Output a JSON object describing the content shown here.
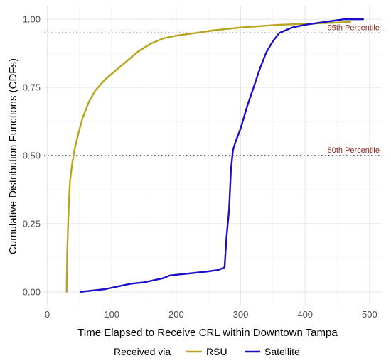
{
  "chart_data": {
    "type": "line",
    "xlabel": "Time Elapsed to Receive CRL within Downtown Tampa",
    "ylabel": "Cumulative Distribution Functions (CDFs)",
    "xlim": [
      -5,
      520
    ],
    "ylim": [
      -0.05,
      1.05
    ],
    "x_ticks": [
      0,
      100,
      200,
      300,
      400,
      500
    ],
    "x_tick_labels": [
      "0",
      "100",
      "200",
      "300",
      "400",
      "500"
    ],
    "y_ticks": [
      0.0,
      0.25,
      0.5,
      0.75,
      1.0
    ],
    "y_tick_labels": [
      "0.00",
      "0.25",
      "0.50",
      "0.75",
      "1.00"
    ],
    "grid": true,
    "legend_position": "bottom",
    "legend_title": "Received via",
    "reference_lines": [
      {
        "y": 0.95,
        "label": "95th Percentile"
      },
      {
        "y": 0.5,
        "label": "50th Percentile"
      }
    ],
    "series": [
      {
        "name": "RSU",
        "color": "#b8a41b",
        "x": [
          30,
          31,
          33,
          35,
          38,
          42,
          48,
          55,
          65,
          75,
          90,
          100,
          115,
          125,
          140,
          160,
          180,
          200,
          230,
          260,
          300,
          360,
          420,
          470
        ],
        "y": [
          0.0,
          0.15,
          0.3,
          0.4,
          0.46,
          0.52,
          0.58,
          0.64,
          0.7,
          0.74,
          0.78,
          0.8,
          0.83,
          0.85,
          0.88,
          0.91,
          0.93,
          0.94,
          0.95,
          0.96,
          0.97,
          0.98,
          0.985,
          0.99
        ]
      },
      {
        "name": "Satellite",
        "color": "#1a0fc8",
        "x": [
          52,
          70,
          90,
          110,
          130,
          150,
          170,
          180,
          190,
          210,
          230,
          250,
          265,
          275,
          278,
          282,
          285,
          288,
          292,
          300,
          310,
          320,
          330,
          340,
          350,
          360,
          380,
          400,
          430,
          460,
          490
        ],
        "y": [
          0.0,
          0.005,
          0.01,
          0.02,
          0.03,
          0.035,
          0.045,
          0.05,
          0.06,
          0.065,
          0.07,
          0.075,
          0.08,
          0.09,
          0.2,
          0.3,
          0.45,
          0.52,
          0.55,
          0.6,
          0.68,
          0.75,
          0.82,
          0.88,
          0.92,
          0.95,
          0.97,
          0.98,
          0.99,
          1.0,
          1.0
        ]
      }
    ]
  }
}
